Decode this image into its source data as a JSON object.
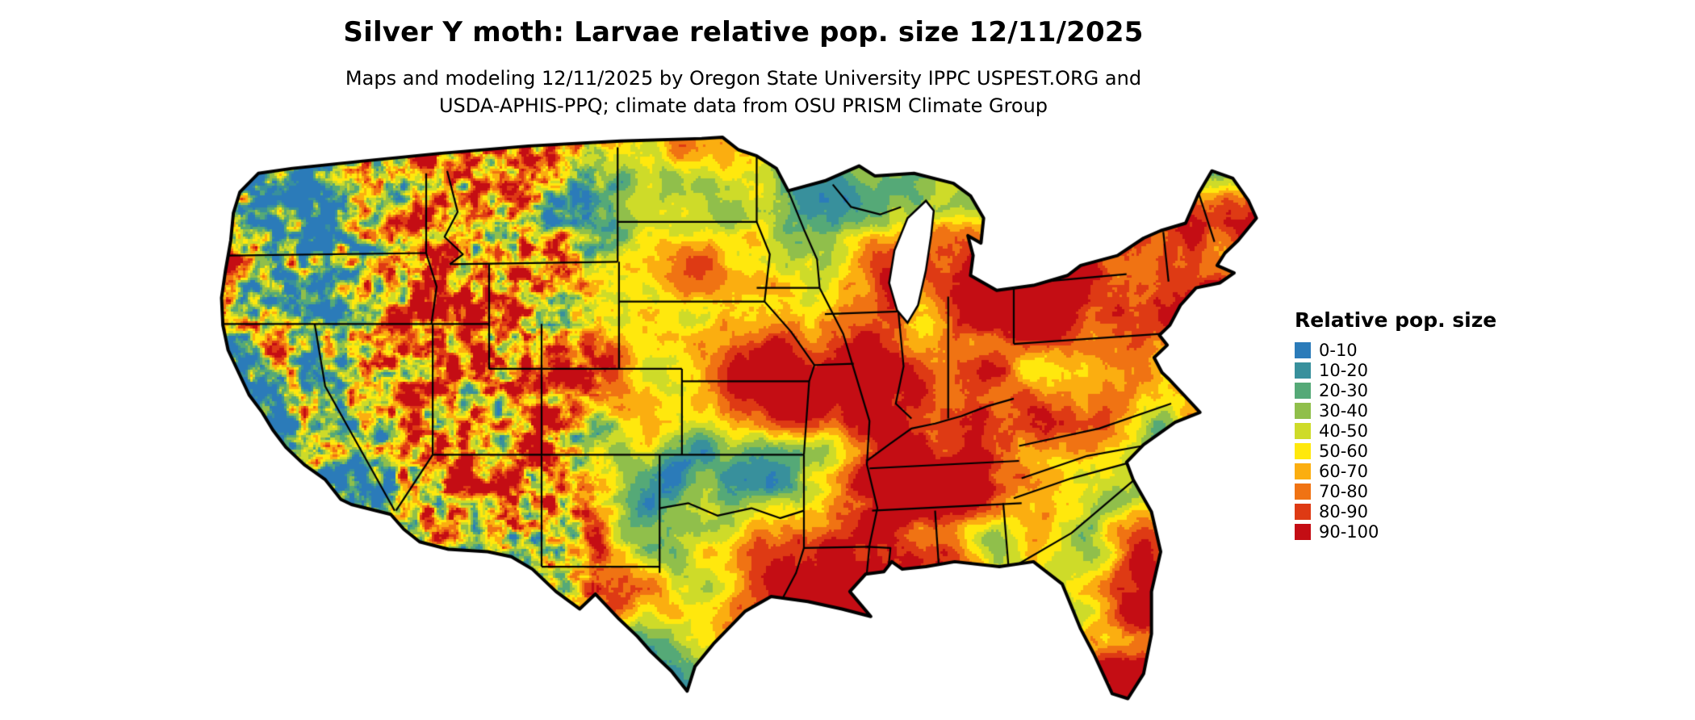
{
  "header": {
    "title": "Silver Y moth: Larvae relative pop. size 12/11/2025",
    "subtitle_line1": "Maps and modeling 12/11/2025 by Oregon State University IPPC USPEST.ORG and",
    "subtitle_line2": "USDA-APHIS-PPQ; climate data from OSU PRISM Climate Group"
  },
  "map": {
    "area": "Continental United States",
    "type": "raster choropleth of relative population size"
  },
  "legend": {
    "title": "Relative pop. size",
    "items": [
      {
        "label": "0-10",
        "color": "#2B7BB9"
      },
      {
        "label": "10-20",
        "color": "#38909C"
      },
      {
        "label": "20-30",
        "color": "#55A977"
      },
      {
        "label": "30-40",
        "color": "#90BF4B"
      },
      {
        "label": "40-50",
        "color": "#CEDB29"
      },
      {
        "label": "50-60",
        "color": "#FFE80D"
      },
      {
        "label": "60-70",
        "color": "#FBAE10"
      },
      {
        "label": "70-80",
        "color": "#F07313"
      },
      {
        "label": "80-90",
        "color": "#DE3A14"
      },
      {
        "label": "90-100",
        "color": "#C40D14"
      }
    ]
  }
}
